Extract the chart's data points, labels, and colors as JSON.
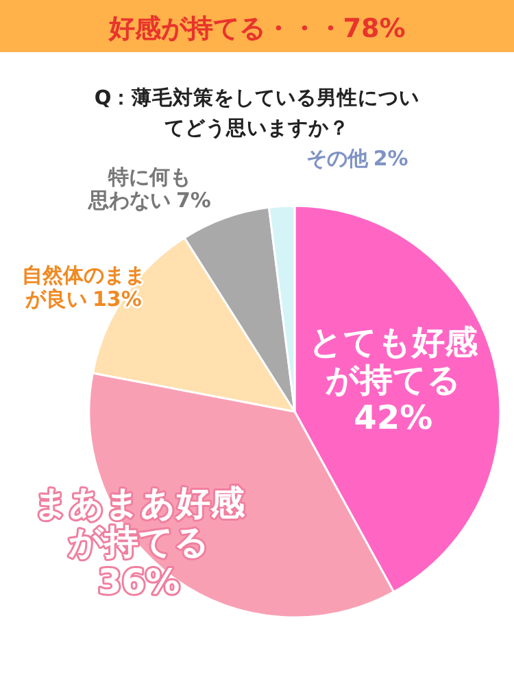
{
  "chart_data": {
    "type": "pie",
    "title": "好感が持てる・・・78%",
    "subtitle": "Q：薄毛対策をしている男性についてどう思いますか？",
    "categories": [
      "とても好感が持てる",
      "まあまあ好感が持てる",
      "自然体のままが良い",
      "特に何も思わない",
      "その他"
    ],
    "values": [
      42,
      36,
      13,
      7,
      2
    ],
    "colors": [
      "#ff66c4",
      "#f99fb4",
      "#ffe0ae",
      "#a9a9a9",
      "#d4f4f7"
    ],
    "value_labels": [
      "42%",
      "36%",
      "13%",
      "7%",
      "2%"
    ]
  }
}
